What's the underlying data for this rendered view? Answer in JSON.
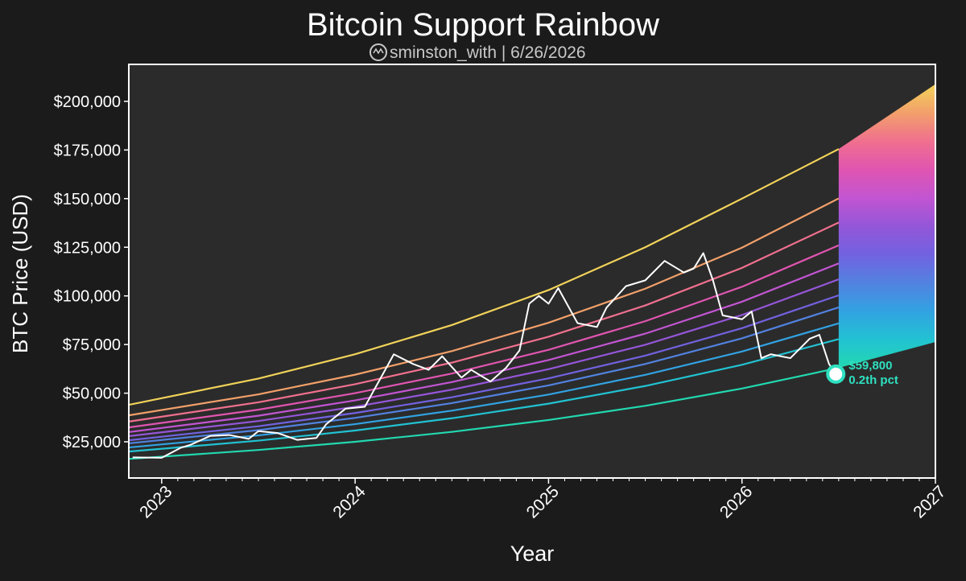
{
  "chart_data": {
    "type": "line",
    "title": "Bitcoin Support Rainbow",
    "subtitle": "sminston_with | 6/26/2026",
    "x_label": "Year",
    "y_label": "BTC Price (USD)",
    "xlim": [
      2022.83,
      2027
    ],
    "ylim": [
      6400,
      219000
    ],
    "xticks": [
      2023,
      2024,
      2025,
      2026,
      2027
    ],
    "yticks": [
      {
        "value": 25000,
        "label": "$25,000"
      },
      {
        "value": 50000,
        "label": "$50,000"
      },
      {
        "value": 75000,
        "label": "$75,000"
      },
      {
        "value": 100000,
        "label": "$100,000"
      },
      {
        "value": 125000,
        "label": "$125,000"
      },
      {
        "value": 150000,
        "label": "$150,000"
      },
      {
        "value": 175000,
        "label": "$175,000"
      },
      {
        "value": 200000,
        "label": "$200,000"
      }
    ],
    "bands": {
      "x": [
        2022.83,
        2023.5,
        2024,
        2024.5,
        2025,
        2025.5,
        2026,
        2026.5
      ],
      "series": [
        {
          "color": "#f2d35a",
          "values": [
            44000,
            57500,
            70000,
            85000,
            103000,
            125000,
            150000,
            175500
          ]
        },
        {
          "color": "#f2a06a",
          "values": [
            38600,
            49400,
            59500,
            71600,
            86200,
            103700,
            124800,
            150100
          ]
        },
        {
          "color": "#f0708e",
          "values": [
            35400,
            45300,
            54600,
            65700,
            79000,
            95100,
            114400,
            137700
          ]
        },
        {
          "color": "#e055b0",
          "values": [
            32400,
            41500,
            50000,
            60100,
            72300,
            87000,
            104700,
            126000
          ]
        },
        {
          "color": "#c255d2",
          "values": [
            30000,
            38400,
            46300,
            55700,
            67000,
            80600,
            97000,
            116700
          ]
        },
        {
          "color": "#9456d8",
          "values": [
            27900,
            35700,
            43000,
            51800,
            62300,
            74900,
            90200,
            108500
          ]
        },
        {
          "color": "#7262e0",
          "values": [
            25800,
            33000,
            39800,
            47900,
            57600,
            69300,
            83400,
            100300
          ]
        },
        {
          "color": "#5282e0",
          "values": [
            24200,
            31000,
            37300,
            44900,
            54000,
            65000,
            78200,
            94100
          ]
        },
        {
          "color": "#32a2e2",
          "values": [
            22100,
            28300,
            34100,
            41000,
            49300,
            59400,
            71400,
            85900
          ]
        },
        {
          "color": "#22c2d2",
          "values": [
            20000,
            25600,
            30800,
            37100,
            44600,
            53700,
            64600,
            77800
          ]
        },
        {
          "color": "#22d8b0",
          "values": [
            16200,
            20800,
            25000,
            30100,
            36200,
            43500,
            52400,
            63000
          ]
        }
      ]
    },
    "projection": {
      "x": [
        2026.5,
        2027
      ],
      "upper": [
        175500,
        208800
      ],
      "lower": [
        63000,
        76300
      ]
    },
    "price": {
      "color": "#ffffff",
      "x": [
        2022.85,
        2023.0,
        2023.1,
        2023.15,
        2023.25,
        2023.35,
        2023.45,
        2023.5,
        2023.6,
        2023.7,
        2023.8,
        2023.85,
        2023.95,
        2024.05,
        2024.1,
        2024.2,
        2024.3,
        2024.38,
        2024.45,
        2024.55,
        2024.6,
        2024.7,
        2024.78,
        2024.85,
        2024.9,
        2024.95,
        2025.0,
        2025.05,
        2025.15,
        2025.25,
        2025.3,
        2025.4,
        2025.5,
        2025.6,
        2025.7,
        2025.75,
        2025.8,
        2025.85,
        2025.9,
        2026.0,
        2026.05,
        2026.1,
        2026.15,
        2026.25,
        2026.35,
        2026.4,
        2026.45,
        2026.485
      ],
      "values": [
        17000,
        16800,
        22000,
        23500,
        28000,
        28500,
        26500,
        30500,
        29500,
        26000,
        27000,
        34000,
        42000,
        43000,
        52000,
        70000,
        65000,
        62000,
        69000,
        58000,
        62000,
        56000,
        63000,
        72000,
        96000,
        100000,
        96000,
        104000,
        86000,
        84000,
        94000,
        105000,
        108000,
        118000,
        112000,
        114000,
        122000,
        108000,
        90000,
        88000,
        92000,
        68000,
        70000,
        68000,
        78000,
        80000,
        65000,
        59800
      ]
    },
    "annotation": {
      "x": 2026.485,
      "value": 59800,
      "label": "$59,800",
      "note": "0.2th pct",
      "color": "#2ee0c0"
    }
  }
}
